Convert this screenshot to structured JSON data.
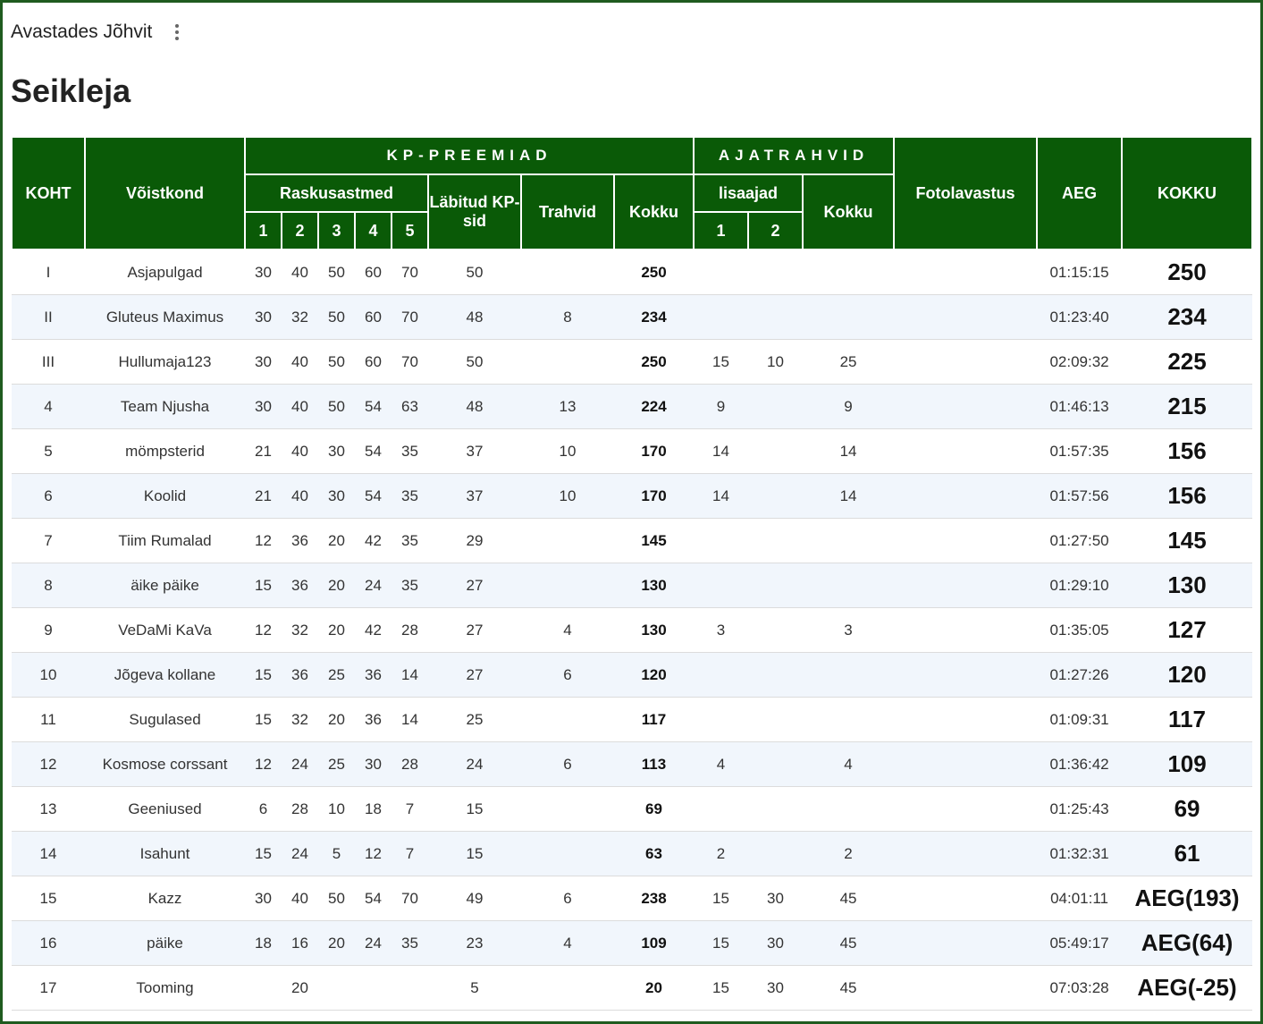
{
  "app": {
    "title": "Avastades Jõhvit",
    "menu_icon": "more-vert-icon"
  },
  "page": {
    "title": "Seikleja"
  },
  "colors": {
    "header_bg": "#0a5a07",
    "frame": "#1f5b1f",
    "stripe": "#f1f6fc"
  },
  "headers": {
    "koht": "KOHT",
    "voistkond": "Võistkond",
    "kp_preemiad": "KP-PREEMIAD",
    "ajatrahvid": "AJATRAHVID",
    "fotolavastus": "Fotolavastus",
    "aeg": "AEG",
    "kokku_total": "KOKKU",
    "raskusastmed": "Raskusastmed",
    "labitud": "Läbitud KP-sid",
    "trahvid": "Trahvid",
    "kokku_kp": "Kokku",
    "lisaajad": "lisaajad",
    "kokku_aja": "Kokku",
    "r1": "1",
    "r2": "2",
    "r3": "3",
    "r4": "4",
    "r5": "5",
    "l1": "1",
    "l2": "2"
  },
  "rows": [
    {
      "koht": "I",
      "team": "Asjapulgad",
      "r1": "30",
      "r2": "40",
      "r3": "50",
      "r4": "60",
      "r5": "70",
      "labitud": "50",
      "trahvid": "",
      "kokku": "250",
      "l1": "",
      "l2": "",
      "aja_kokku": "",
      "foto": "",
      "aeg": "01:15:15",
      "total": "250"
    },
    {
      "koht": "II",
      "team": "Gluteus Maximus",
      "r1": "30",
      "r2": "32",
      "r3": "50",
      "r4": "60",
      "r5": "70",
      "labitud": "48",
      "trahvid": "8",
      "kokku": "234",
      "l1": "",
      "l2": "",
      "aja_kokku": "",
      "foto": "",
      "aeg": "01:23:40",
      "total": "234"
    },
    {
      "koht": "III",
      "team": "Hullumaja123",
      "r1": "30",
      "r2": "40",
      "r3": "50",
      "r4": "60",
      "r5": "70",
      "labitud": "50",
      "trahvid": "",
      "kokku": "250",
      "l1": "15",
      "l2": "10",
      "aja_kokku": "25",
      "foto": "",
      "aeg": "02:09:32",
      "total": "225"
    },
    {
      "koht": "4",
      "team": "Team Njusha",
      "r1": "30",
      "r2": "40",
      "r3": "50",
      "r4": "54",
      "r5": "63",
      "labitud": "48",
      "trahvid": "13",
      "kokku": "224",
      "l1": "9",
      "l2": "",
      "aja_kokku": "9",
      "foto": "",
      "aeg": "01:46:13",
      "total": "215"
    },
    {
      "koht": "5",
      "team": "mömpsterid",
      "r1": "21",
      "r2": "40",
      "r3": "30",
      "r4": "54",
      "r5": "35",
      "labitud": "37",
      "trahvid": "10",
      "kokku": "170",
      "l1": "14",
      "l2": "",
      "aja_kokku": "14",
      "foto": "",
      "aeg": "01:57:35",
      "total": "156"
    },
    {
      "koht": "6",
      "team": "Koolid",
      "r1": "21",
      "r2": "40",
      "r3": "30",
      "r4": "54",
      "r5": "35",
      "labitud": "37",
      "trahvid": "10",
      "kokku": "170",
      "l1": "14",
      "l2": "",
      "aja_kokku": "14",
      "foto": "",
      "aeg": "01:57:56",
      "total": "156"
    },
    {
      "koht": "7",
      "team": "Tiim Rumalad",
      "r1": "12",
      "r2": "36",
      "r3": "20",
      "r4": "42",
      "r5": "35",
      "labitud": "29",
      "trahvid": "",
      "kokku": "145",
      "l1": "",
      "l2": "",
      "aja_kokku": "",
      "foto": "",
      "aeg": "01:27:50",
      "total": "145"
    },
    {
      "koht": "8",
      "team": "äike päike",
      "r1": "15",
      "r2": "36",
      "r3": "20",
      "r4": "24",
      "r5": "35",
      "labitud": "27",
      "trahvid": "",
      "kokku": "130",
      "l1": "",
      "l2": "",
      "aja_kokku": "",
      "foto": "",
      "aeg": "01:29:10",
      "total": "130"
    },
    {
      "koht": "9",
      "team": "VeDaMi KaVa",
      "r1": "12",
      "r2": "32",
      "r3": "20",
      "r4": "42",
      "r5": "28",
      "labitud": "27",
      "trahvid": "4",
      "kokku": "130",
      "l1": "3",
      "l2": "",
      "aja_kokku": "3",
      "foto": "",
      "aeg": "01:35:05",
      "total": "127"
    },
    {
      "koht": "10",
      "team": "Jõgeva kollane",
      "r1": "15",
      "r2": "36",
      "r3": "25",
      "r4": "36",
      "r5": "14",
      "labitud": "27",
      "trahvid": "6",
      "kokku": "120",
      "l1": "",
      "l2": "",
      "aja_kokku": "",
      "foto": "",
      "aeg": "01:27:26",
      "total": "120"
    },
    {
      "koht": "11",
      "team": "Sugulased",
      "r1": "15",
      "r2": "32",
      "r3": "20",
      "r4": "36",
      "r5": "14",
      "labitud": "25",
      "trahvid": "",
      "kokku": "117",
      "l1": "",
      "l2": "",
      "aja_kokku": "",
      "foto": "",
      "aeg": "01:09:31",
      "total": "117"
    },
    {
      "koht": "12",
      "team": "Kosmose corssant",
      "r1": "12",
      "r2": "24",
      "r3": "25",
      "r4": "30",
      "r5": "28",
      "labitud": "24",
      "trahvid": "6",
      "kokku": "113",
      "l1": "4",
      "l2": "",
      "aja_kokku": "4",
      "foto": "",
      "aeg": "01:36:42",
      "total": "109"
    },
    {
      "koht": "13",
      "team": "Geeniused",
      "r1": "6",
      "r2": "28",
      "r3": "10",
      "r4": "18",
      "r5": "7",
      "labitud": "15",
      "trahvid": "",
      "kokku": "69",
      "l1": "",
      "l2": "",
      "aja_kokku": "",
      "foto": "",
      "aeg": "01:25:43",
      "total": "69"
    },
    {
      "koht": "14",
      "team": "Isahunt",
      "r1": "15",
      "r2": "24",
      "r3": "5",
      "r4": "12",
      "r5": "7",
      "labitud": "15",
      "trahvid": "",
      "kokku": "63",
      "l1": "2",
      "l2": "",
      "aja_kokku": "2",
      "foto": "",
      "aeg": "01:32:31",
      "total": "61"
    },
    {
      "koht": "15",
      "team": "Kazz",
      "r1": "30",
      "r2": "40",
      "r3": "50",
      "r4": "54",
      "r5": "70",
      "labitud": "49",
      "trahvid": "6",
      "kokku": "238",
      "l1": "15",
      "l2": "30",
      "aja_kokku": "45",
      "foto": "",
      "aeg": "04:01:11",
      "total": "AEG(193)"
    },
    {
      "koht": "16",
      "team": "päike",
      "r1": "18",
      "r2": "16",
      "r3": "20",
      "r4": "24",
      "r5": "35",
      "labitud": "23",
      "trahvid": "4",
      "kokku": "109",
      "l1": "15",
      "l2": "30",
      "aja_kokku": "45",
      "foto": "",
      "aeg": "05:49:17",
      "total": "AEG(64)"
    },
    {
      "koht": "17",
      "team": "Tooming",
      "r1": "",
      "r2": "20",
      "r3": "",
      "r4": "",
      "r5": "",
      "labitud": "5",
      "trahvid": "",
      "kokku": "20",
      "l1": "15",
      "l2": "30",
      "aja_kokku": "45",
      "foto": "",
      "aeg": "07:03:28",
      "total": "AEG(-25)"
    }
  ]
}
